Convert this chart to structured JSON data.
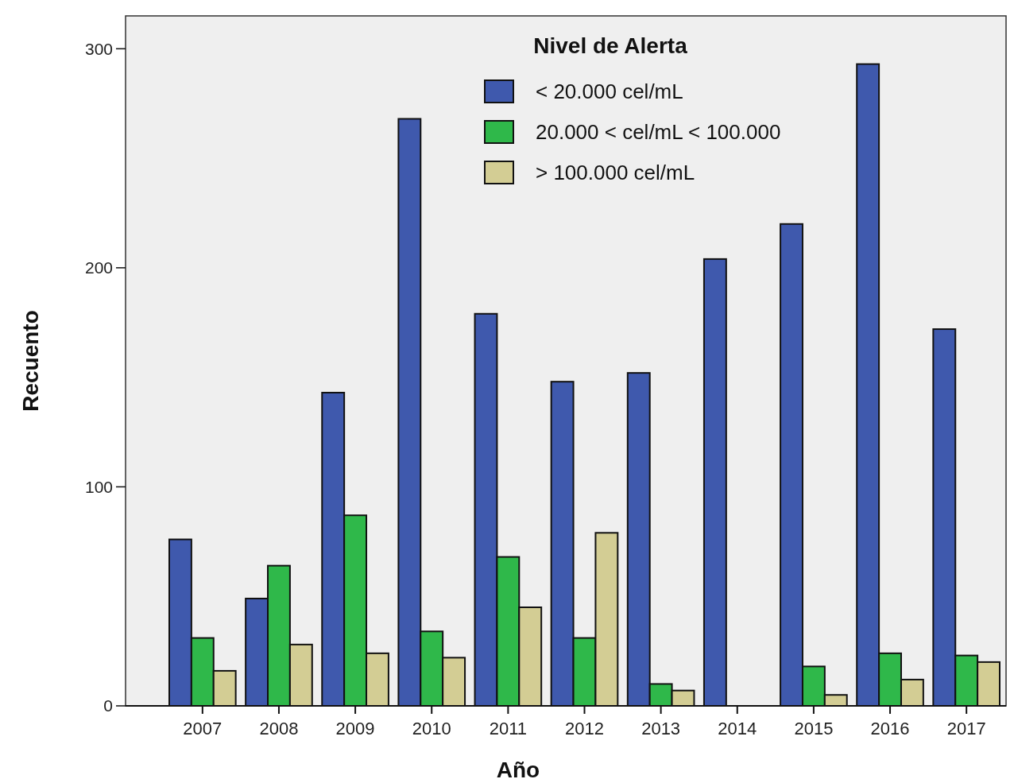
{
  "chart_data": {
    "type": "bar",
    "xlabel": "Año",
    "ylabel": "Recuento",
    "legend_title": "Nivel de Alerta",
    "legend": "top right",
    "categories": [
      "2007",
      "2008",
      "2009",
      "2010",
      "2011",
      "2012",
      "2013",
      "2014",
      "2015",
      "2016",
      "2017"
    ],
    "series": [
      {
        "name": "< 20.000 cel/mL",
        "color": "#3f59ad",
        "values": [
          76,
          49,
          143,
          268,
          179,
          148,
          152,
          204,
          220,
          293,
          172
        ]
      },
      {
        "name": "20.000 < cel/mL < 100.000",
        "color": "#2fb84a",
        "values": [
          31,
          64,
          87,
          34,
          68,
          31,
          10,
          0,
          18,
          24,
          23
        ]
      },
      {
        "name": "> 100.000 cel/mL",
        "color": "#d3cd94",
        "values": [
          16,
          28,
          24,
          22,
          45,
          79,
          7,
          0,
          5,
          12,
          20
        ]
      }
    ],
    "ylim": [
      0,
      315
    ],
    "yticks": [
      0,
      100,
      200,
      300
    ],
    "grid": false
  }
}
